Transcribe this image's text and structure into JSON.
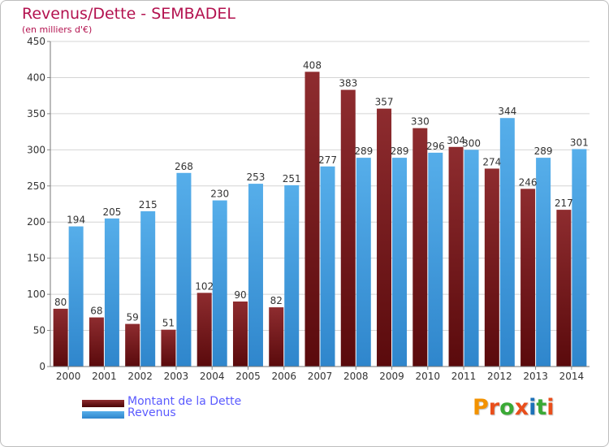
{
  "header": {
    "title": "Revenus/Dette - SEMBADEL",
    "subtitle": "(en milliers d'€)"
  },
  "colors": {
    "title": "#b3124f",
    "dette": "#8a2a2c",
    "revenus": "#4ea6e6",
    "legend_text": "#5a5aff"
  },
  "legend": {
    "items": [
      {
        "label": "Montant de la Dette",
        "color": "#6e1618"
      },
      {
        "label": "Revenus",
        "color": "#4ea6e6"
      }
    ]
  },
  "logo": {
    "text": "Proxiti",
    "letter_colors": [
      "#f39200",
      "#e94e1b",
      "#3aa935",
      "#e94e1b",
      "#1d71b8",
      "#3aa935",
      "#e94e1b"
    ]
  },
  "chart_data": {
    "type": "bar",
    "title": "Revenus/Dette - SEMBADEL",
    "subtitle": "(en milliers d'€)",
    "categories": [
      "2000",
      "2001",
      "2002",
      "2003",
      "2004",
      "2005",
      "2006",
      "2007",
      "2008",
      "2009",
      "2010",
      "2011",
      "2012",
      "2013",
      "2014"
    ],
    "series": [
      {
        "name": "Montant de la Dette",
        "values": [
          80,
          68,
          59,
          51,
          102,
          90,
          82,
          408,
          383,
          357,
          330,
          304,
          274,
          246,
          217
        ]
      },
      {
        "name": "Revenus",
        "values": [
          194,
          205,
          215,
          268,
          230,
          253,
          251,
          277,
          289,
          289,
          296,
          300,
          344,
          289,
          301
        ]
      }
    ],
    "ylim": [
      0,
      450
    ],
    "yticks": [
      0,
      50,
      100,
      150,
      200,
      250,
      300,
      350,
      400,
      450
    ],
    "grid": true,
    "legend_position": "bottom-left"
  }
}
